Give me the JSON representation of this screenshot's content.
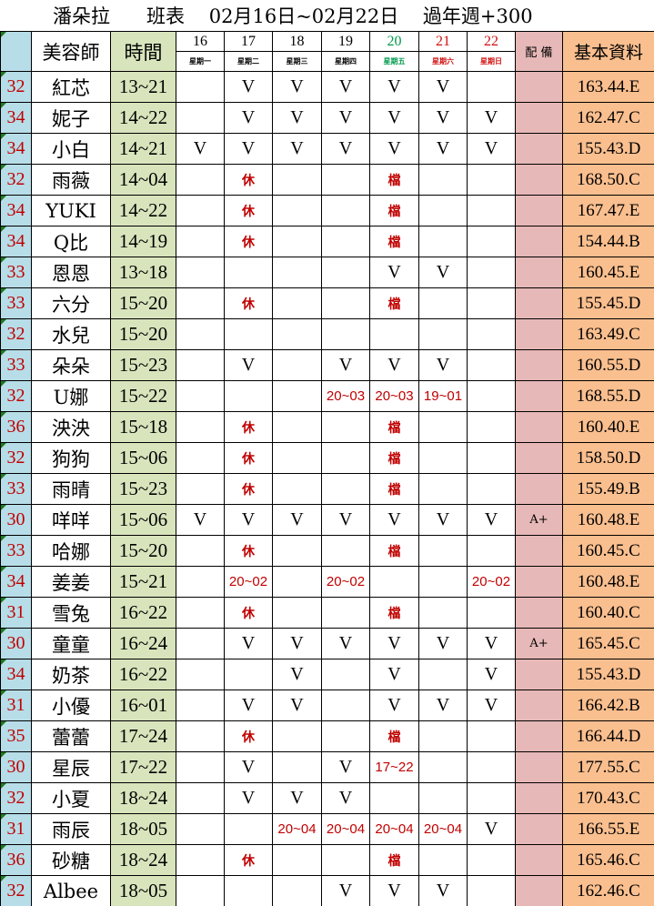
{
  "title": "潘朵拉      班表    02月16日~02月22日    過年週+300",
  "headers": {
    "name": "美容師",
    "time": "時間",
    "notes": "配 備",
    "info": "基本資料"
  },
  "days": [
    {
      "date": "16",
      "weekday": "星期一",
      "color": "#000000"
    },
    {
      "date": "17",
      "weekday": "星期二",
      "color": "#000000"
    },
    {
      "date": "18",
      "weekday": "星期三",
      "color": "#000000"
    },
    {
      "date": "19",
      "weekday": "星期四",
      "color": "#000000"
    },
    {
      "date": "20",
      "weekday": "星期五",
      "color": "#00994c"
    },
    {
      "date": "21",
      "weekday": "星期六",
      "color": "#d01010"
    },
    {
      "date": "22",
      "weekday": "星期日",
      "color": "#d01010"
    }
  ],
  "colors": {
    "age_bg": "#b7dde8",
    "age_text": "#c00000",
    "time_bg": "#d8e4bc",
    "notes_bg": "#e6b8b7",
    "info_bg": "#fabf8f",
    "mark_red": "#c00000"
  },
  "rows": [
    {
      "age": "32",
      "name": "紅芯",
      "time": "13~21",
      "days": [
        "",
        "V",
        "V",
        "V",
        "V",
        "V",
        ""
      ],
      "note": "",
      "info": "163.44.E"
    },
    {
      "age": "34",
      "name": "妮子",
      "time": "14~22",
      "days": [
        "",
        "V",
        "V",
        "V",
        "V",
        "V",
        "V"
      ],
      "note": "",
      "info": "162.47.C"
    },
    {
      "age": "34",
      "name": "小白",
      "time": "14~21",
      "days": [
        "V",
        "V",
        "V",
        "V",
        "V",
        "V",
        "V"
      ],
      "note": "",
      "info": "155.43.D"
    },
    {
      "age": "32",
      "name": "雨薇",
      "time": "14~04",
      "days": [
        "",
        "休",
        "",
        "",
        "檔",
        "",
        ""
      ],
      "note": "",
      "info": "168.50.C"
    },
    {
      "age": "34",
      "name": "YUKI",
      "time": "14~22",
      "days": [
        "",
        "休",
        "",
        "",
        "檔",
        "",
        ""
      ],
      "note": "",
      "info": "167.47.E"
    },
    {
      "age": "34",
      "name": "Q比",
      "time": "14~19",
      "days": [
        "",
        "休",
        "",
        "",
        "檔",
        "",
        ""
      ],
      "note": "",
      "info": "154.44.B"
    },
    {
      "age": "33",
      "name": "恩恩",
      "time": "13~18",
      "days": [
        "",
        "",
        "",
        "",
        "V",
        "V",
        ""
      ],
      "note": "",
      "info": "160.45.E"
    },
    {
      "age": "33",
      "name": "六分",
      "time": "15~20",
      "days": [
        "",
        "休",
        "",
        "",
        "檔",
        "",
        ""
      ],
      "note": "",
      "info": "155.45.D"
    },
    {
      "age": "32",
      "name": "水兒",
      "time": "15~20",
      "days": [
        "",
        "",
        "",
        "",
        "",
        "",
        ""
      ],
      "note": "",
      "info": "163.49.C"
    },
    {
      "age": "33",
      "name": "朵朵",
      "time": "15~23",
      "days": [
        "",
        "V",
        "",
        "V",
        "V",
        "V",
        ""
      ],
      "note": "",
      "info": "160.55.D"
    },
    {
      "age": "32",
      "name": "U娜",
      "time": "15~22",
      "days": [
        "",
        "",
        "",
        "20~03",
        "20~03",
        "19~01",
        ""
      ],
      "note": "",
      "info": "168.55.D"
    },
    {
      "age": "36",
      "name": "泱泱",
      "time": "15~18",
      "days": [
        "",
        "休",
        "",
        "",
        "檔",
        "",
        ""
      ],
      "note": "",
      "info": "160.40.E"
    },
    {
      "age": "32",
      "name": "狗狗",
      "time": "15~06",
      "days": [
        "",
        "休",
        "",
        "",
        "檔",
        "",
        ""
      ],
      "note": "",
      "info": "158.50.D"
    },
    {
      "age": "33",
      "name": "雨晴",
      "time": "15~23",
      "days": [
        "",
        "休",
        "",
        "",
        "檔",
        "",
        ""
      ],
      "note": "",
      "info": "155.49.B"
    },
    {
      "age": "30",
      "name": "咩咩",
      "time": "15~06",
      "days": [
        "V",
        "V",
        "V",
        "V",
        "V",
        "V",
        "V"
      ],
      "note": "A+",
      "info": "160.48.E"
    },
    {
      "age": "33",
      "name": "哈娜",
      "time": "15~20",
      "days": [
        "",
        "休",
        "",
        "",
        "檔",
        "",
        ""
      ],
      "note": "",
      "info": "160.45.C"
    },
    {
      "age": "34",
      "name": "姜姜",
      "time": "15~21",
      "days": [
        "",
        "20~02",
        "",
        "20~02",
        "",
        "",
        "20~02"
      ],
      "note": "",
      "info": "160.48.E"
    },
    {
      "age": "31",
      "name": "雪兔",
      "time": "16~22",
      "days": [
        "",
        "休",
        "",
        "",
        "檔",
        "",
        ""
      ],
      "note": "",
      "info": "160.40.C"
    },
    {
      "age": "30",
      "name": "童童",
      "time": "16~24",
      "days": [
        "",
        "V",
        "V",
        "V",
        "V",
        "V",
        "V"
      ],
      "note": "A+",
      "info": "165.45.C"
    },
    {
      "age": "34",
      "name": "奶茶",
      "time": "16~22",
      "days": [
        "",
        "",
        "V",
        "",
        "V",
        "",
        "V"
      ],
      "note": "",
      "info": "155.43.D"
    },
    {
      "age": "31",
      "name": "小優",
      "time": "16~01",
      "days": [
        "",
        "V",
        "V",
        "",
        "V",
        "V",
        "V"
      ],
      "note": "",
      "info": "166.42.B"
    },
    {
      "age": "35",
      "name": "蕾蕾",
      "time": "17~24",
      "days": [
        "",
        "休",
        "",
        "",
        "檔",
        "",
        ""
      ],
      "note": "",
      "info": "166.44.D"
    },
    {
      "age": "30",
      "name": "星辰",
      "time": "17~22",
      "days": [
        "",
        "V",
        "",
        "V",
        "17~22",
        "",
        ""
      ],
      "note": "",
      "info": "177.55.C"
    },
    {
      "age": "32",
      "name": "小夏",
      "time": "18~24",
      "days": [
        "",
        "V",
        "V",
        "V",
        "",
        "",
        ""
      ],
      "note": "",
      "info": "170.43.C"
    },
    {
      "age": "31",
      "name": "雨辰",
      "time": "18~05",
      "days": [
        "",
        "",
        "20~04",
        "20~04",
        "20~04",
        "20~04",
        "V"
      ],
      "note": "",
      "info": "166.55.E"
    },
    {
      "age": "36",
      "name": "砂糖",
      "time": "18~24",
      "days": [
        "",
        "休",
        "",
        "",
        "檔",
        "",
        ""
      ],
      "note": "",
      "info": "165.46.C"
    },
    {
      "age": "32",
      "name": "Albee",
      "time": "18~05",
      "days": [
        "",
        "",
        "",
        "V",
        "V",
        "V",
        ""
      ],
      "note": "",
      "info": "162.46.C"
    }
  ]
}
